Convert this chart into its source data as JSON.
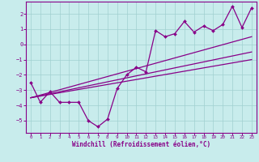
{
  "xlabel": "Windchill (Refroidissement éolien,°C)",
  "x_data": [
    0,
    1,
    2,
    3,
    4,
    5,
    6,
    7,
    8,
    9,
    10,
    11,
    12,
    13,
    14,
    15,
    16,
    17,
    18,
    19,
    20,
    21,
    22,
    23
  ],
  "y_scatter": [
    -2.5,
    -3.8,
    -3.1,
    -3.8,
    -3.8,
    -3.8,
    -5.0,
    -5.4,
    -4.9,
    -2.9,
    -2.0,
    -1.5,
    -1.8,
    0.9,
    0.5,
    0.7,
    1.5,
    0.8,
    1.2,
    0.9,
    1.3,
    2.5,
    1.1,
    2.4
  ],
  "line1_x": [
    0,
    23
  ],
  "line1_y": [
    -3.5,
    -1.0
  ],
  "line2_x": [
    0,
    23
  ],
  "line2_y": [
    -3.5,
    -0.5
  ],
  "line3_x": [
    0,
    23
  ],
  "line3_y": [
    -3.5,
    0.5
  ],
  "color": "#880088",
  "bg_color": "#c8ecec",
  "grid_color": "#a0d0d0",
  "ylim": [
    -5.8,
    2.8
  ],
  "xlim": [
    -0.5,
    23.5
  ],
  "yticks": [
    -5,
    -4,
    -3,
    -2,
    -1,
    0,
    1,
    2
  ],
  "xticks": [
    0,
    1,
    2,
    3,
    4,
    5,
    6,
    7,
    8,
    9,
    10,
    11,
    12,
    13,
    14,
    15,
    16,
    17,
    18,
    19,
    20,
    21,
    22,
    23
  ]
}
